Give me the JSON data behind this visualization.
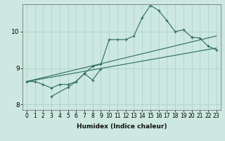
{
  "xlabel": "Humidex (Indice chaleur)",
  "bg_color": "#cce8e0",
  "line_color": "#2d6b5e",
  "grid_color": "#aacfc8",
  "xlim": [
    -0.5,
    23.5
  ],
  "ylim": [
    7.85,
    10.75
  ],
  "xticks": [
    0,
    1,
    2,
    3,
    4,
    5,
    6,
    7,
    8,
    9,
    10,
    11,
    12,
    13,
    14,
    15,
    16,
    17,
    18,
    19,
    20,
    21,
    22,
    23
  ],
  "yticks": [
    8,
    9,
    10
  ],
  "series1_x": [
    0,
    1,
    2,
    3,
    4,
    5,
    6,
    7,
    8,
    9,
    10,
    11,
    12,
    13,
    14,
    15,
    16,
    17,
    18,
    19,
    20,
    21,
    22,
    23
  ],
  "series1_y": [
    8.63,
    8.63,
    8.55,
    8.45,
    8.55,
    8.55,
    8.63,
    8.85,
    9.05,
    9.1,
    9.78,
    9.78,
    9.78,
    9.88,
    10.38,
    10.72,
    10.58,
    10.3,
    10.0,
    10.05,
    9.85,
    9.82,
    9.6,
    9.5
  ],
  "series2_x": [
    0,
    23
  ],
  "series2_y": [
    8.63,
    9.55
  ],
  "series3_x": [
    0,
    23
  ],
  "series3_y": [
    8.63,
    9.88
  ],
  "series4_x": [
    3,
    5,
    6,
    7,
    8,
    9
  ],
  "series4_y": [
    8.22,
    8.47,
    8.63,
    8.85,
    8.67,
    8.98
  ],
  "tick_fontsize": 5.5,
  "xlabel_fontsize": 6.5
}
